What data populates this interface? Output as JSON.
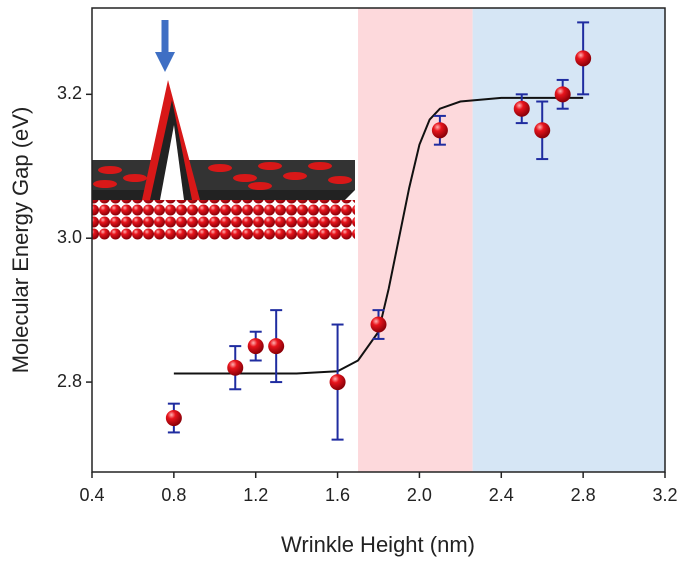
{
  "chart_data": {
    "type": "scatter",
    "x_label": "Wrinkle Height (nm)",
    "y_label": "Molecular Energy Gap (eV)",
    "xlim": [
      0.4,
      3.2
    ],
    "ylim": [
      2.675,
      3.32
    ],
    "xticks": [
      0.4,
      0.8,
      1.2,
      1.6,
      {
        "value": 2,
        "label": "2.0"
      },
      2.4,
      2.8,
      3.2
    ],
    "yticks": [
      2.8,
      {
        "value": 3,
        "label": "3.0"
      },
      3.2
    ],
    "regions": [
      {
        "x": [
          1.7,
          2.26
        ],
        "color": "#fdd9dc"
      },
      {
        "x": [
          2.26,
          3.2
        ],
        "color": "#d6e6f5"
      }
    ],
    "series": [
      {
        "color": "#e8141c",
        "error_color": "#1f2ca0",
        "x": [
          0.8,
          1.1,
          1.2,
          1.3,
          1.6,
          1.8,
          2.1,
          2.5,
          2.6,
          2.7,
          2.8
        ],
        "values": [
          2.75,
          2.82,
          2.85,
          2.85,
          2.8,
          2.88,
          3.15,
          3.18,
          3.15,
          3.2,
          3.25
        ],
        "errors": [
          0.02,
          0.03,
          0.02,
          0.05,
          0.08,
          0.02,
          0.02,
          0.02,
          0.04,
          0.02,
          0.05
        ]
      }
    ],
    "fit": {
      "color": "#111111",
      "x": [
        0.8,
        1.0,
        1.2,
        1.4,
        1.6,
        1.7,
        1.8,
        1.85,
        1.9,
        1.95,
        2.0,
        2.05,
        2.1,
        2.2,
        2.4,
        2.6,
        2.8
      ],
      "values": [
        2.812,
        2.812,
        2.812,
        2.812,
        2.815,
        2.83,
        2.87,
        2.93,
        3.0,
        3.07,
        3.13,
        3.165,
        3.18,
        3.19,
        3.195,
        3.195,
        3.195
      ]
    }
  }
}
